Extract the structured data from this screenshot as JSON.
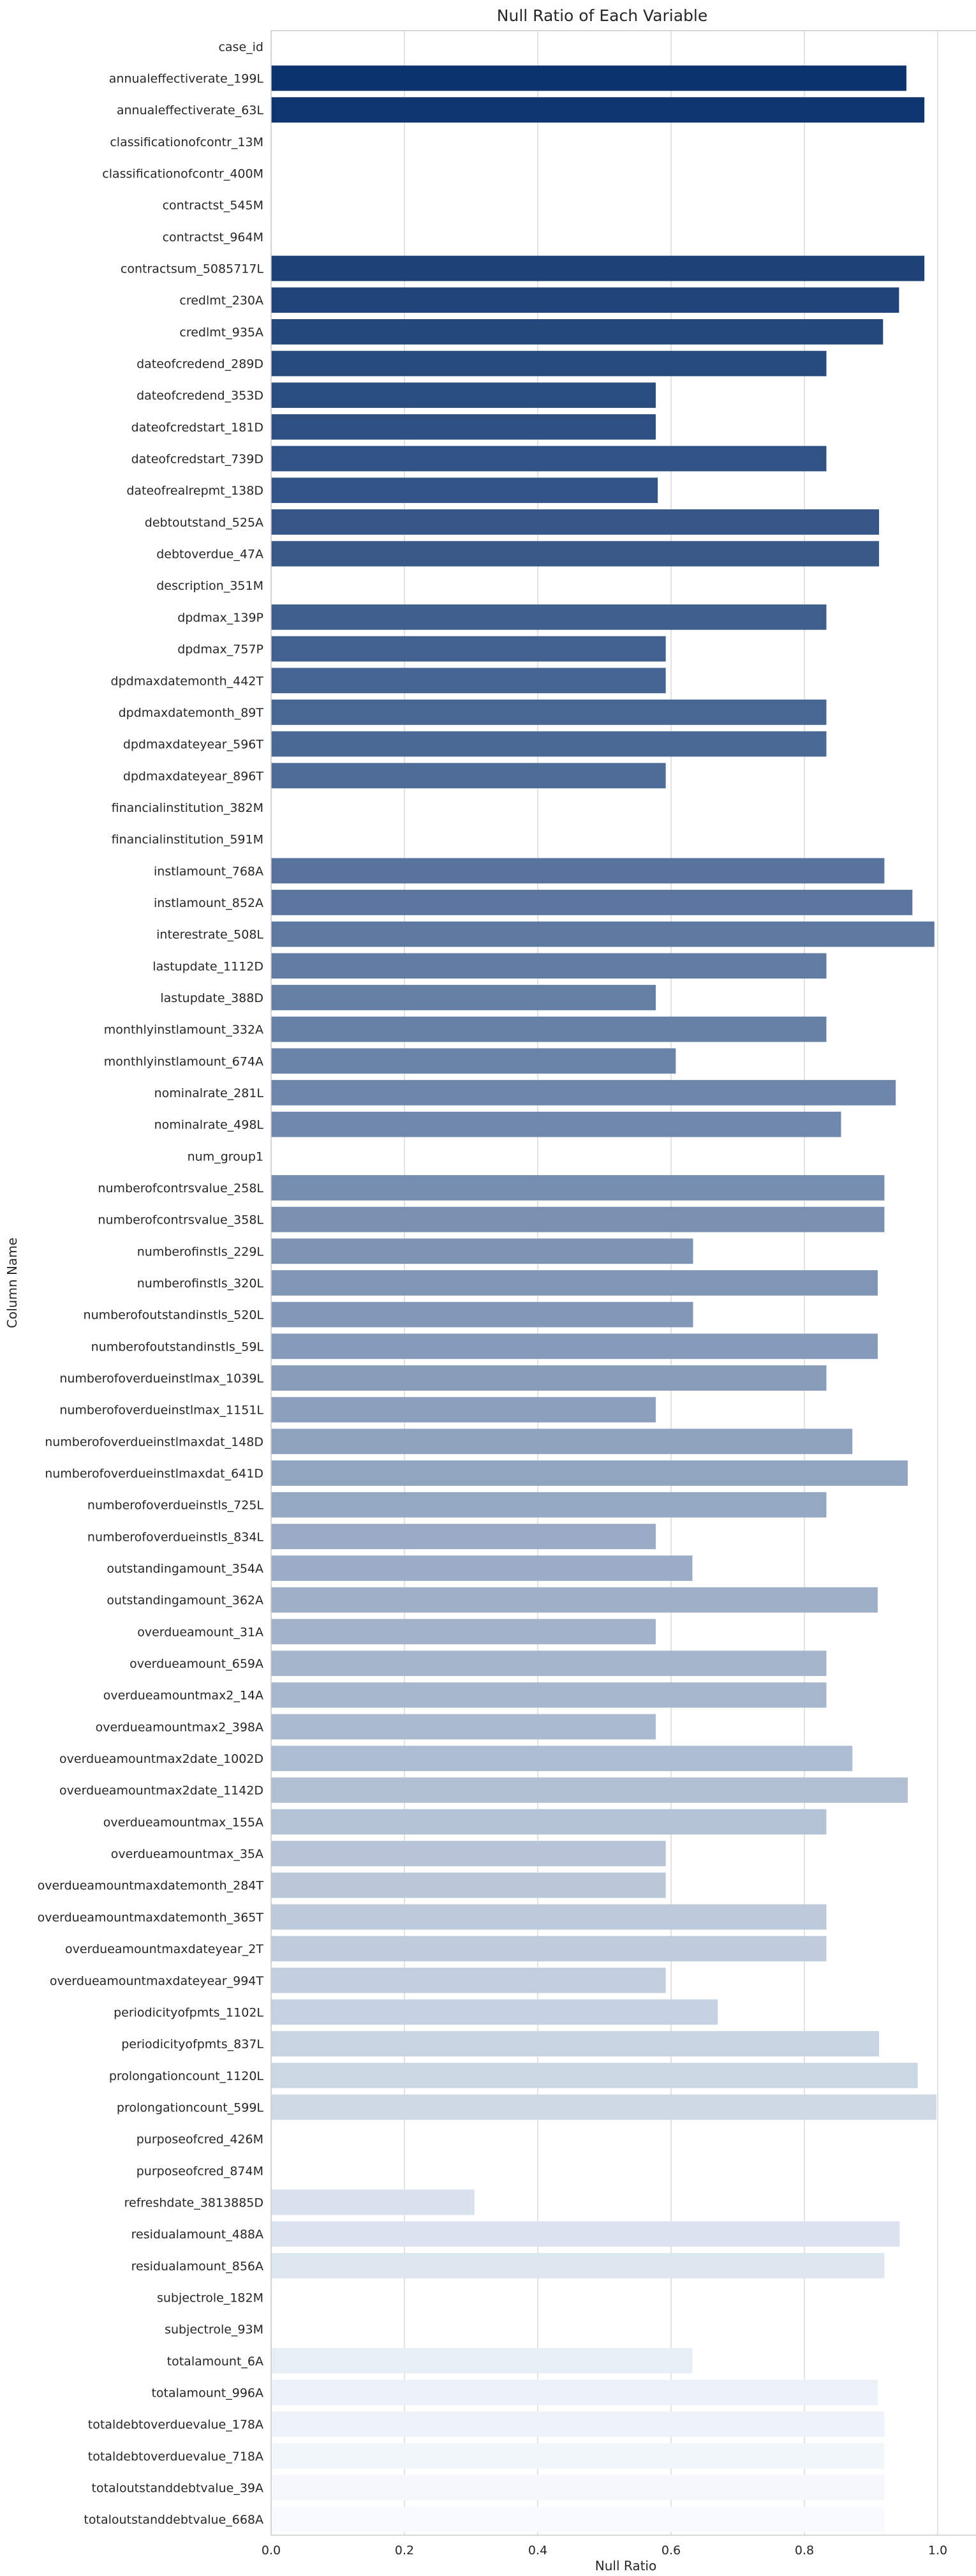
{
  "chart_data": {
    "type": "bar",
    "orientation": "horizontal",
    "title": "Null Ratio of Each Variable",
    "xlabel": "Null Ratio",
    "ylabel": "Column Name",
    "xlim": [
      0.0,
      1.05
    ],
    "xticks": [
      "0.0",
      "0.2",
      "0.4",
      "0.6",
      "0.8",
      "1.0"
    ],
    "grid": "x",
    "categories": [
      "case_id",
      "annualeffectiverate_199L",
      "annualeffectiverate_63L",
      "classificationofcontr_13M",
      "classificationofcontr_400M",
      "contractst_545M",
      "contractst_964M",
      "contractsum_5085717L",
      "credlmt_230A",
      "credlmt_935A",
      "dateofcredend_289D",
      "dateofcredend_353D",
      "dateofcredstart_181D",
      "dateofcredstart_739D",
      "dateofrealrepmt_138D",
      "debtoutstand_525A",
      "debtoverdue_47A",
      "description_351M",
      "dpdmax_139P",
      "dpdmax_757P",
      "dpdmaxdatemonth_442T",
      "dpdmaxdatemonth_89T",
      "dpdmaxdateyear_596T",
      "dpdmaxdateyear_896T",
      "financialinstitution_382M",
      "financialinstitution_591M",
      "instlamount_768A",
      "instlamount_852A",
      "interestrate_508L",
      "lastupdate_1112D",
      "lastupdate_388D",
      "monthlyinstlamount_332A",
      "monthlyinstlamount_674A",
      "nominalrate_281L",
      "nominalrate_498L",
      "num_group1",
      "numberofcontrsvalue_258L",
      "numberofcontrsvalue_358L",
      "numberofinstls_229L",
      "numberofinstls_320L",
      "numberofoutstandinstls_520L",
      "numberofoutstandinstls_59L",
      "numberofoverdueinstlmax_1039L",
      "numberofoverdueinstlmax_1151L",
      "numberofoverdueinstlmaxdat_148D",
      "numberofoverdueinstlmaxdat_641D",
      "numberofoverdueinstls_725L",
      "numberofoverdueinstls_834L",
      "outstandingamount_354A",
      "outstandingamount_362A",
      "overdueamount_31A",
      "overdueamount_659A",
      "overdueamountmax2_14A",
      "overdueamountmax2_398A",
      "overdueamountmax2date_1002D",
      "overdueamountmax2date_1142D",
      "overdueamountmax_155A",
      "overdueamountmax_35A",
      "overdueamountmaxdatemonth_284T",
      "overdueamountmaxdatemonth_365T",
      "overdueamountmaxdateyear_2T",
      "overdueamountmaxdateyear_994T",
      "periodicityofpmts_1102L",
      "periodicityofpmts_837L",
      "prolongationcount_1120L",
      "prolongationcount_599L",
      "purposeofcred_426M",
      "purposeofcred_874M",
      "refreshdate_3813885D",
      "residualamount_488A",
      "residualamount_856A",
      "subjectrole_182M",
      "subjectrole_93M",
      "totalamount_6A",
      "totalamount_996A",
      "totaldebtoverduevalue_178A",
      "totaldebtoverduevalue_718A",
      "totaloutstanddebtvalue_39A",
      "totaloutstanddebtvalue_668A"
    ],
    "values": [
      0.0,
      0.953,
      0.98,
      0.0,
      0.0,
      0.0,
      0.0,
      0.98,
      0.942,
      0.918,
      0.833,
      0.577,
      0.577,
      0.833,
      0.58,
      0.912,
      0.912,
      0.0,
      0.833,
      0.592,
      0.592,
      0.833,
      0.833,
      0.592,
      0.0,
      0.0,
      0.92,
      0.962,
      0.995,
      0.833,
      0.577,
      0.833,
      0.607,
      0.937,
      0.855,
      0.0,
      0.92,
      0.92,
      0.633,
      0.91,
      0.633,
      0.91,
      0.833,
      0.577,
      0.872,
      0.955,
      0.833,
      0.577,
      0.632,
      0.91,
      0.577,
      0.833,
      0.833,
      0.577,
      0.872,
      0.955,
      0.833,
      0.592,
      0.592,
      0.833,
      0.833,
      0.592,
      0.67,
      0.912,
      0.97,
      0.998,
      0.0,
      0.0,
      0.305,
      0.943,
      0.92,
      0.0,
      0.0,
      0.632,
      0.91,
      0.92,
      0.92,
      0.92,
      0.92
    ],
    "palette": {
      "start": "#08306b",
      "end": "#f7fbff",
      "grid": "#d9d9d9",
      "background": "#ffffff"
    }
  }
}
